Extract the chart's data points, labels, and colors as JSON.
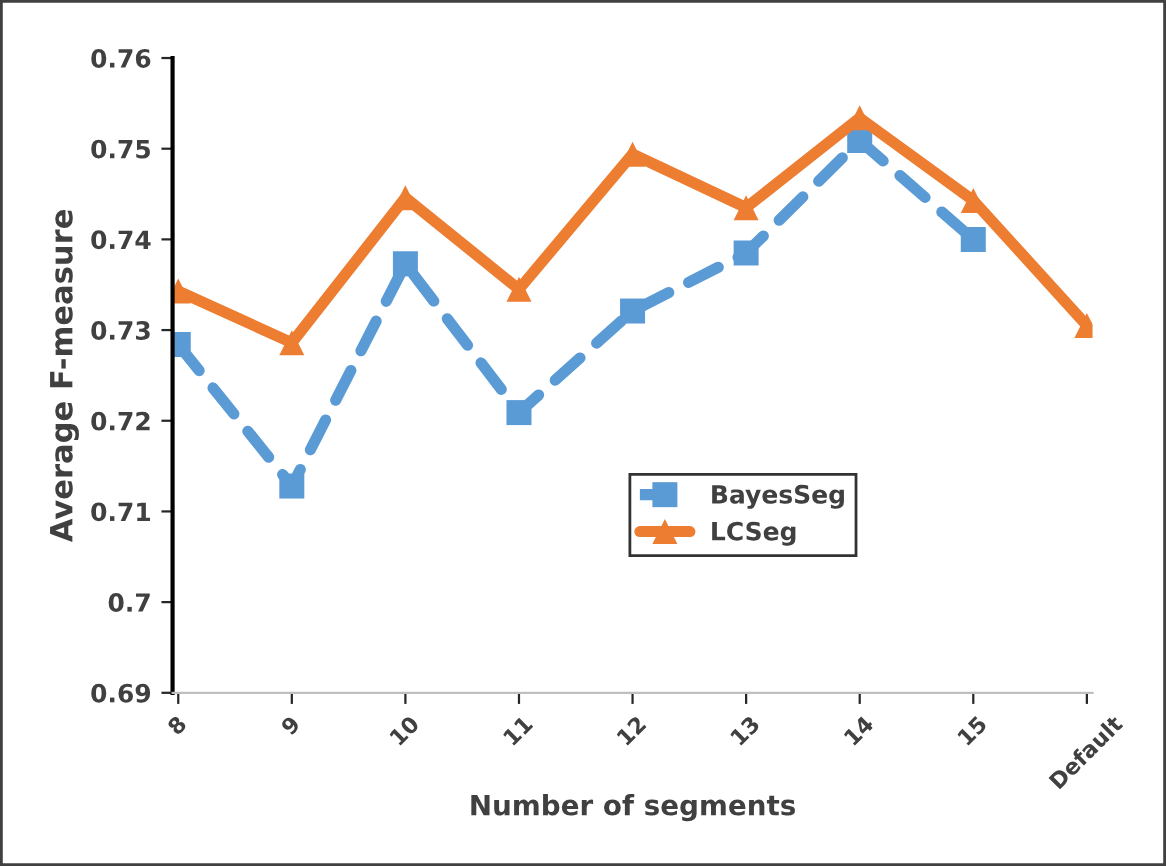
{
  "chart_data": {
    "type": "line",
    "xlabel": "Number of segments",
    "ylabel": "Average F-measure",
    "categories": [
      "8",
      "9",
      "10",
      "11",
      "12",
      "13",
      "14",
      "15",
      "Default"
    ],
    "series": [
      {
        "name": "BayesSeg",
        "color": "#5b9bd5",
        "marker": "square",
        "line_style": "dashed",
        "values": [
          0.7284,
          0.7128,
          0.7373,
          0.7209,
          0.7321,
          0.7385,
          0.7509,
          0.74,
          null
        ]
      },
      {
        "name": "LCSeg",
        "color": "#ed7d31",
        "marker": "triangle",
        "line_style": "solid",
        "values": [
          0.7343,
          0.7286,
          0.7446,
          0.7345,
          0.7494,
          0.7435,
          0.7534,
          0.7443,
          0.7305
        ]
      }
    ],
    "ylim": [
      0.69,
      0.76
    ],
    "yticks": [
      0.69,
      0.7,
      0.71,
      0.72,
      0.73,
      0.74,
      0.75,
      0.76
    ],
    "grid": false,
    "legend": "bottom"
  }
}
